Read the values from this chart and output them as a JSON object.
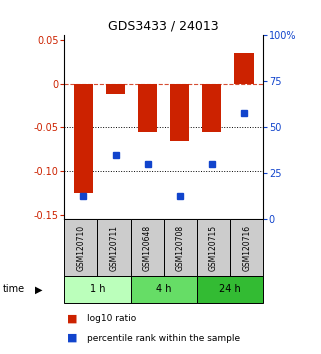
{
  "title": "GDS3433 / 24013",
  "samples": [
    "GSM120710",
    "GSM120711",
    "GSM120648",
    "GSM120708",
    "GSM120715",
    "GSM120716"
  ],
  "log10_ratio": [
    -0.125,
    -0.012,
    -0.055,
    -0.065,
    -0.055,
    0.035
  ],
  "percentile_rank": [
    13,
    35,
    30,
    13,
    30,
    58
  ],
  "bar_color": "#cc2200",
  "dot_color": "#1144cc",
  "ylim_left": [
    -0.155,
    0.055
  ],
  "ylim_right": [
    0,
    100
  ],
  "yticks_left": [
    0.05,
    0.0,
    -0.05,
    -0.1,
    -0.15
  ],
  "yticks_right": [
    100,
    75,
    50,
    25,
    0
  ],
  "time_groups": [
    {
      "label": "1 h",
      "indices": [
        0,
        1
      ],
      "color": "#bbffbb"
    },
    {
      "label": "4 h",
      "indices": [
        2,
        3
      ],
      "color": "#66dd66"
    },
    {
      "label": "24 h",
      "indices": [
        4,
        5
      ],
      "color": "#33bb33"
    }
  ],
  "legend_red_label": "log10 ratio",
  "legend_blue_label": "percentile rank within the sample",
  "background_color": "#ffffff",
  "gray_color": "#cccccc",
  "bar_width": 0.6
}
